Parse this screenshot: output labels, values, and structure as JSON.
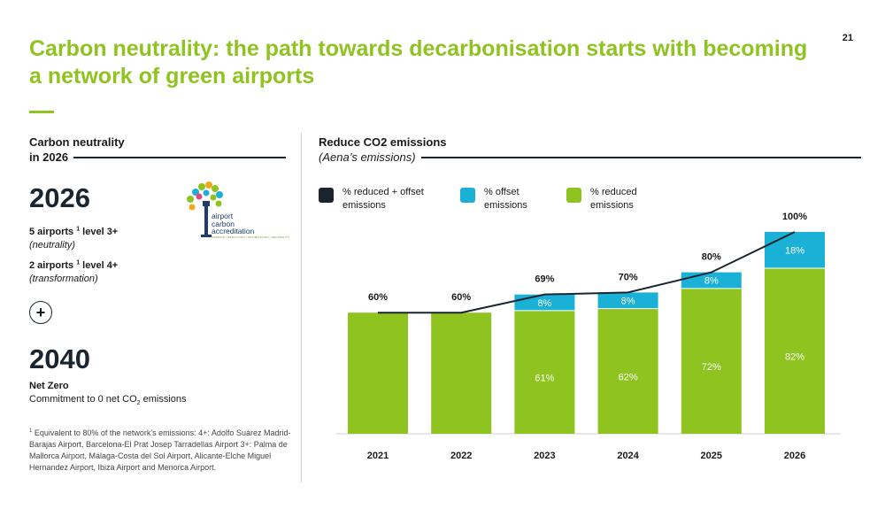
{
  "page_number": "21",
  "title": "Carbon neutrality: the path towards decarbonisation starts with becoming a network of green airports",
  "left": {
    "heading_line1": "Carbon neutrality",
    "heading_line2": "in 2026",
    "year_a": "2026",
    "level1_main": "5 airports",
    "level1_sup": "1",
    "level1_rest": "level 3+",
    "level1_note": "(neutrality)",
    "level2_main": "2 airports",
    "level2_sup": "1",
    "level2_rest": "level 4+",
    "level2_note": "(transformation)",
    "logo_line1": "airport",
    "logo_line2": "carbon",
    "logo_line3": "accreditation",
    "logo_tagline": "MAPPING | REDUCTION | OPTIMISATION | NEUTRALITY",
    "plus": "+",
    "year_b": "2040",
    "netzero_title": "Net Zero",
    "netzero_desc_pre": "Commitment to 0 net CO",
    "netzero_desc_sub": "2",
    "netzero_desc_post": " emissions",
    "footnote_sup": "1",
    "footnote_text": " Equivalent to 80% of the network's emissions: 4+: Adolfo Suárez Madrid-Barajas Airport, Barcelona-El Prat Josep Tarradellas Airport 3+: Palma de Mallorca Airport, Málaga-Costa del Sol Airport, Alicante-Elche Miguel Hernandez Airport, Ibiza Airport and Menorca Airport."
  },
  "right": {
    "heading": "Reduce CO2 emissions",
    "subheading": "(Aena’s emissions)"
  },
  "legend": [
    {
      "label": "% reduced + offset emissions",
      "color": "#1a2530"
    },
    {
      "label": "% offset emissions",
      "color": "#1bb0d6"
    },
    {
      "label": "% reduced emissions",
      "color": "#8fc31f"
    }
  ],
  "colors": {
    "accent": "#8fc31f",
    "reduced": "#8fc31f",
    "offset": "#1bb0d6",
    "line": "#1a2530"
  },
  "chart_data": {
    "type": "bar",
    "stacked": true,
    "categories": [
      "2021",
      "2022",
      "2023",
      "2024",
      "2025",
      "2026"
    ],
    "series": [
      {
        "name": "% reduced emissions",
        "values": [
          60,
          60,
          61,
          62,
          72,
          82
        ],
        "labels": [
          "",
          "",
          "61%",
          "62%",
          "72%",
          "82%"
        ]
      },
      {
        "name": "% offset emissions",
        "values": [
          0,
          0,
          8,
          8,
          8,
          18
        ],
        "labels": [
          "",
          "",
          "8%",
          "8%",
          "8%",
          "18%"
        ]
      }
    ],
    "line_series": {
      "name": "% reduced + offset emissions",
      "values": [
        60,
        60,
        69,
        70,
        80,
        100
      ]
    },
    "total_labels": [
      "60%",
      "60%",
      "69%",
      "70%",
      "80%",
      "100%"
    ],
    "ylim": [
      0,
      100
    ],
    "grid": false,
    "title": "Reduce CO2 emissions",
    "xlabel": "",
    "ylabel": ""
  }
}
